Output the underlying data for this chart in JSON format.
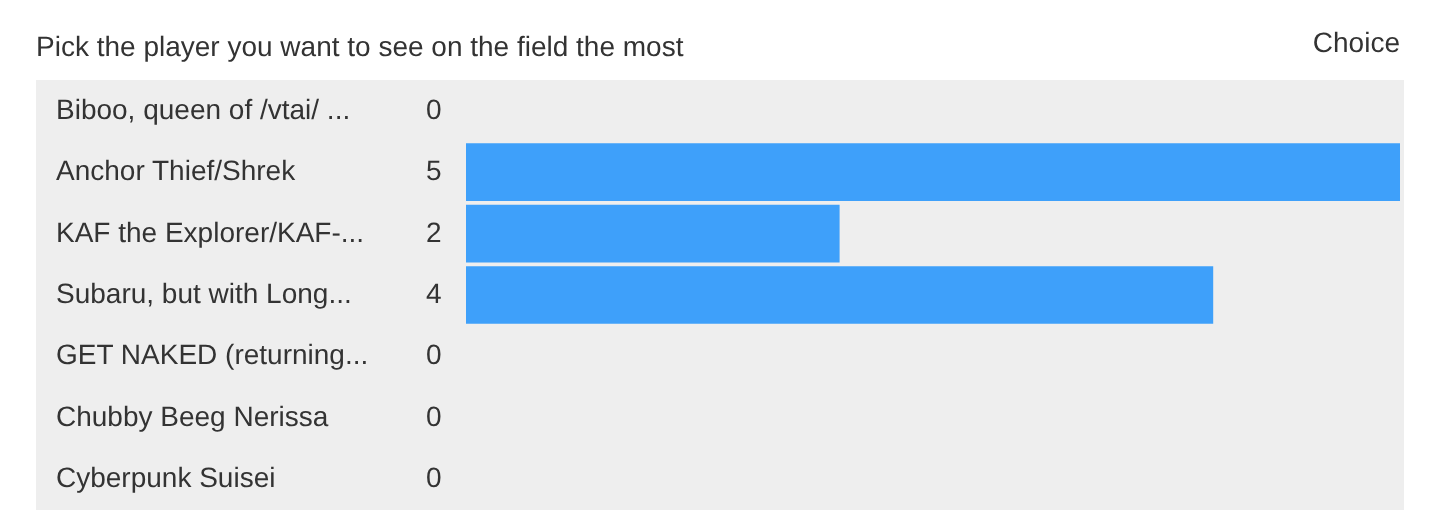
{
  "chart_data": {
    "type": "bar",
    "orientation": "horizontal",
    "title": "Pick the player you want to see on the field the most",
    "categories": [
      "Biboo, queen of /vtai/ ...",
      "Anchor Thief/Shrek",
      "KAF the Explorer/KAF-...",
      "Subaru, but with Long...",
      "GET NAKED (returning...",
      "Chubby Beeg Nerissa",
      "Cyberpunk Suisei"
    ],
    "values": [
      0,
      5,
      2,
      4,
      0,
      0,
      0
    ],
    "color": "#3ea0fa",
    "data_labels": true,
    "annotations": [
      "Choice"
    ]
  }
}
